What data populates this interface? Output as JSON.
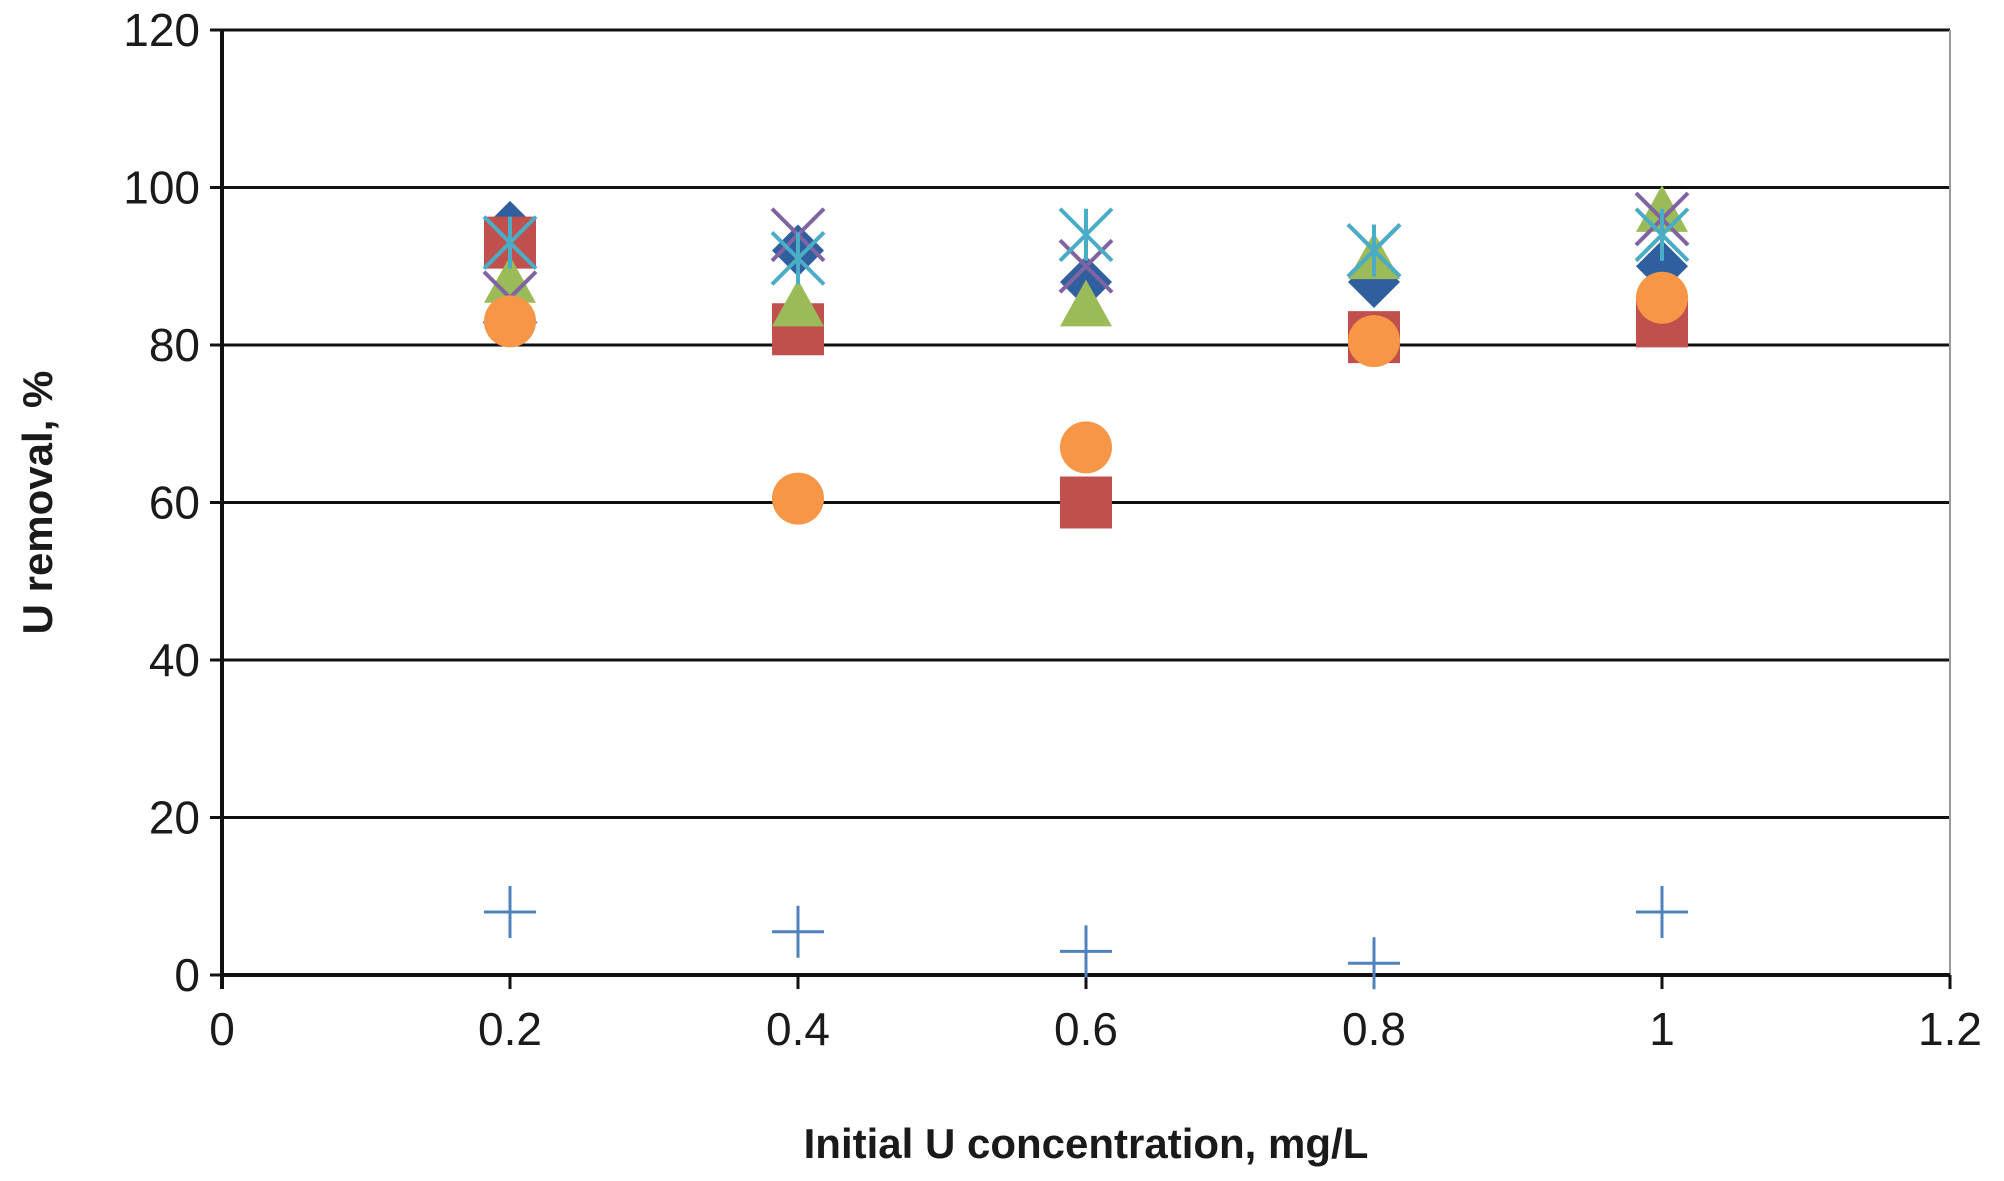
{
  "chart_data": {
    "type": "scatter",
    "title": "",
    "xlabel": "Initial U concentration, mg/L",
    "ylabel": "U removal, %",
    "xlim": [
      0,
      1.2
    ],
    "ylim": [
      0,
      120
    ],
    "x_ticks": [
      "0",
      "0.2",
      "0.4",
      "0.6",
      "0.8",
      "1",
      "1.2"
    ],
    "y_ticks": [
      "0",
      "20",
      "40",
      "60",
      "80",
      "100",
      "120"
    ],
    "grid": "horizontal",
    "legend": "none",
    "series": [
      {
        "name": "diamond series",
        "marker": "diamond",
        "color": "#2f5f9e",
        "x": [
          0.2,
          0.4,
          0.6,
          0.8,
          1.0
        ],
        "y": [
          95,
          92,
          88,
          88,
          90
        ]
      },
      {
        "name": "square series",
        "marker": "square",
        "color": "#c0504d",
        "x": [
          0.2,
          0.4,
          0.6,
          0.8,
          1.0
        ],
        "y": [
          93,
          82,
          60,
          81,
          83
        ]
      },
      {
        "name": "triangle series",
        "marker": "triangle",
        "color": "#9bbb59",
        "x": [
          0.2,
          0.4,
          0.6,
          0.8,
          1.0
        ],
        "y": [
          88,
          85,
          85,
          91,
          97
        ]
      },
      {
        "name": "x series",
        "marker": "x",
        "color": "#8064a2",
        "x": [
          0.2,
          0.4,
          0.6,
          0.8,
          1.0
        ],
        "y": [
          86,
          94,
          90,
          92,
          96
        ]
      },
      {
        "name": "star series",
        "marker": "star",
        "color": "#4bacc6",
        "x": [
          0.2,
          0.4,
          0.6,
          0.8,
          1.0
        ],
        "y": [
          93,
          91,
          94,
          92,
          94
        ]
      },
      {
        "name": "circle series",
        "marker": "circle",
        "color": "#f79646",
        "x": [
          0.2,
          0.4,
          0.6,
          0.8,
          1.0
        ],
        "y": [
          83,
          60.5,
          67,
          80.5,
          86
        ]
      },
      {
        "name": "plus series",
        "marker": "plus",
        "color": "#4f81bd",
        "x": [
          0.2,
          0.4,
          0.6,
          0.8,
          1.0
        ],
        "y": [
          8,
          5.5,
          3,
          1.5,
          8
        ]
      }
    ]
  }
}
